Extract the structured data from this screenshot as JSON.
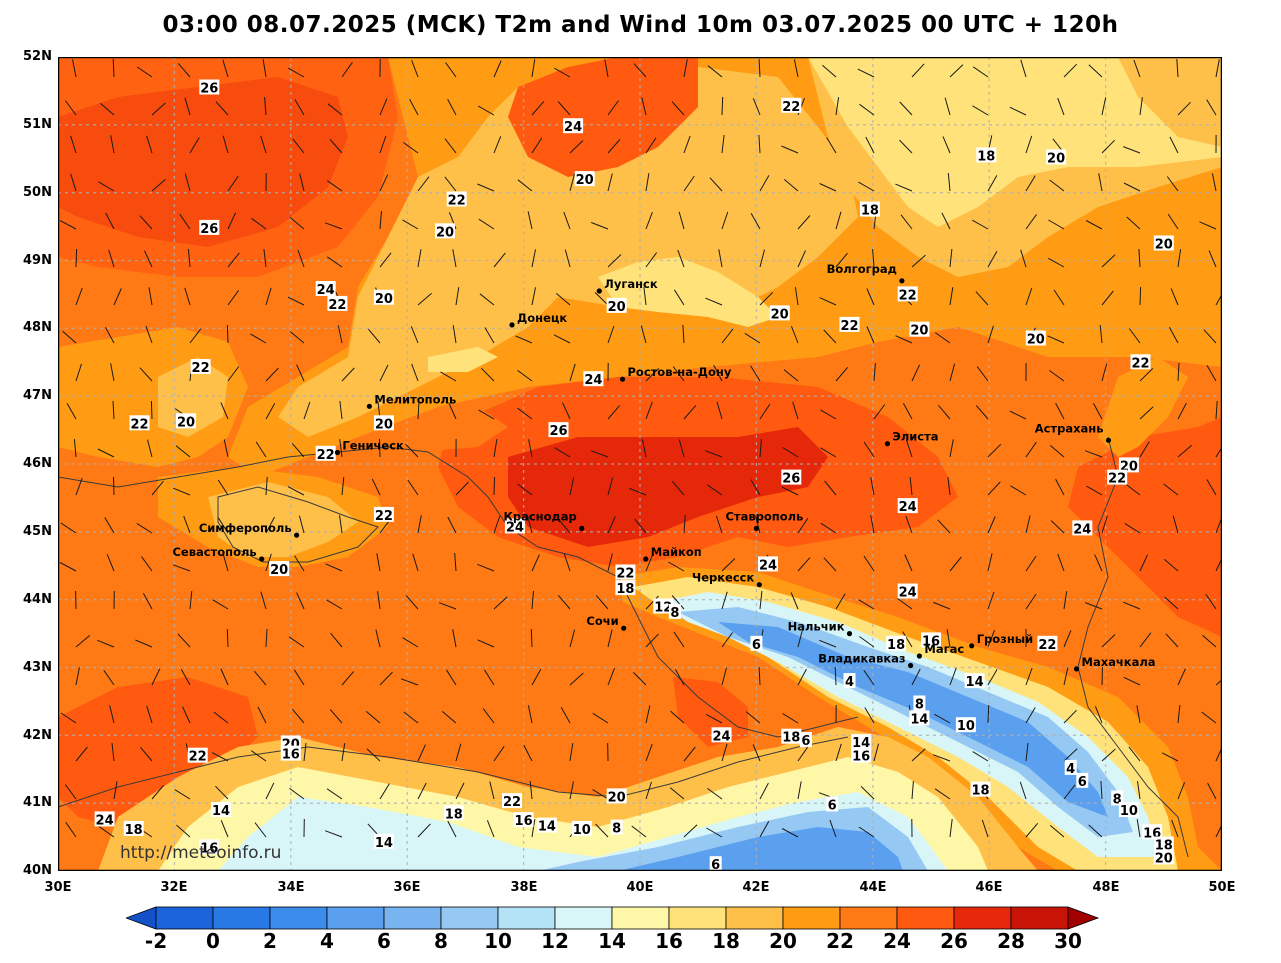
{
  "title": "03:00 08.07.2025 (MCK) T2m and Wind 10m 03.07.2025 00 UTC + 120h",
  "watermark": "http://meteoinfo.ru",
  "lat_labels": [
    "52N",
    "51N",
    "50N",
    "49N",
    "48N",
    "47N",
    "46N",
    "45N",
    "44N",
    "43N",
    "42N",
    "41N",
    "40N"
  ],
  "lon_labels": [
    "30E",
    "32E",
    "34E",
    "36E",
    "38E",
    "40E",
    "42E",
    "44E",
    "46E",
    "48E",
    "50E"
  ],
  "colorbar": {
    "labels": [
      "-2",
      "0",
      "2",
      "4",
      "6",
      "8",
      "10",
      "12",
      "14",
      "16",
      "18",
      "20",
      "22",
      "24",
      "26",
      "28",
      "30"
    ],
    "colors": [
      "#1c64dc",
      "#2878e6",
      "#3c8cec",
      "#5aa0ee",
      "#78b4f0",
      "#96c8f4",
      "#b4e2f6",
      "#d8f6f8",
      "#fff7a8",
      "#ffe37a",
      "#ffc04a",
      "#ff9c14",
      "#ff7a14",
      "#ff5a10",
      "#e6280a",
      "#c81406"
    ],
    "under_color": "#1450c8",
    "over_color": "#a00000"
  },
  "cities": [
    {
      "name": "Луганск",
      "lon": 39.3,
      "lat": 48.55
    },
    {
      "name": "Донецк",
      "lon": 37.8,
      "lat": 48.05
    },
    {
      "name": "Волгоград",
      "lon": 44.5,
      "lat": 48.7
    },
    {
      "name": "Ростов-на-Дону",
      "lon": 39.7,
      "lat": 47.25
    },
    {
      "name": "Мелитополь",
      "lon": 35.35,
      "lat": 46.85
    },
    {
      "name": "Элиста",
      "lon": 44.25,
      "lat": 46.3
    },
    {
      "name": "Астрахань",
      "lon": 48.05,
      "lat": 46.35
    },
    {
      "name": "Геническ",
      "lon": 34.8,
      "lat": 46.17
    },
    {
      "name": "Краснодар",
      "lon": 39.0,
      "lat": 45.05
    },
    {
      "name": "Ставрополь",
      "lon": 42.0,
      "lat": 45.05
    },
    {
      "name": "Симферополь",
      "lon": 34.1,
      "lat": 44.95
    },
    {
      "name": "Севастополь",
      "lon": 33.5,
      "lat": 44.6
    },
    {
      "name": "Майкоп",
      "lon": 40.1,
      "lat": 44.6
    },
    {
      "name": "Черкесск",
      "lon": 42.05,
      "lat": 44.22
    },
    {
      "name": "Сочи",
      "lon": 39.72,
      "lat": 43.58
    },
    {
      "name": "Нальчик",
      "lon": 43.6,
      "lat": 43.5
    },
    {
      "name": "Магас",
      "lon": 44.8,
      "lat": 43.17
    },
    {
      "name": "Грозный",
      "lon": 45.7,
      "lat": 43.32
    },
    {
      "name": "Владикавказ",
      "lon": 44.65,
      "lat": 43.03
    },
    {
      "name": "Махачкала",
      "lon": 47.5,
      "lat": 42.98
    }
  ],
  "isotherm_labels": [
    {
      "text": "26",
      "lon": 32.6,
      "lat": 51.55
    },
    {
      "text": "26",
      "lon": 32.6,
      "lat": 49.48
    },
    {
      "text": "24",
      "lon": 38.85,
      "lat": 50.98
    },
    {
      "text": "22",
      "lon": 42.6,
      "lat": 51.28
    },
    {
      "text": "20",
      "lon": 39.05,
      "lat": 50.2
    },
    {
      "text": "22",
      "lon": 36.85,
      "lat": 49.9
    },
    {
      "text": "20",
      "lon": 36.65,
      "lat": 49.43
    },
    {
      "text": "18",
      "lon": 43.95,
      "lat": 49.75
    },
    {
      "text": "18",
      "lon": 45.95,
      "lat": 50.55
    },
    {
      "text": "20",
      "lon": 47.15,
      "lat": 50.52
    },
    {
      "text": "20",
      "lon": 49.0,
      "lat": 49.25
    },
    {
      "text": "24",
      "lon": 34.6,
      "lat": 48.58
    },
    {
      "text": "22",
      "lon": 34.8,
      "lat": 48.36
    },
    {
      "text": "20",
      "lon": 35.6,
      "lat": 48.45
    },
    {
      "text": "20",
      "lon": 39.6,
      "lat": 48.33
    },
    {
      "text": "20",
      "lon": 42.4,
      "lat": 48.22
    },
    {
      "text": "22",
      "lon": 43.6,
      "lat": 48.05
    },
    {
      "text": "22",
      "lon": 44.6,
      "lat": 48.5
    },
    {
      "text": "20",
      "lon": 44.8,
      "lat": 47.98
    },
    {
      "text": "20",
      "lon": 46.8,
      "lat": 47.85
    },
    {
      "text": "22",
      "lon": 48.6,
      "lat": 47.5
    },
    {
      "text": "22",
      "lon": 32.45,
      "lat": 47.43
    },
    {
      "text": "24",
      "lon": 39.2,
      "lat": 47.25
    },
    {
      "text": "22",
      "lon": 31.4,
      "lat": 46.6
    },
    {
      "text": "20",
      "lon": 32.2,
      "lat": 46.63
    },
    {
      "text": "20",
      "lon": 35.6,
      "lat": 46.6
    },
    {
      "text": "26",
      "lon": 38.6,
      "lat": 46.5
    },
    {
      "text": "22",
      "lon": 34.6,
      "lat": 46.15
    },
    {
      "text": "26",
      "lon": 42.6,
      "lat": 45.8
    },
    {
      "text": "20",
      "lon": 48.4,
      "lat": 45.98
    },
    {
      "text": "22",
      "lon": 48.2,
      "lat": 45.8
    },
    {
      "text": "24",
      "lon": 44.6,
      "lat": 45.38
    },
    {
      "text": "24",
      "lon": 47.6,
      "lat": 45.05
    },
    {
      "text": "22",
      "lon": 35.6,
      "lat": 45.25
    },
    {
      "text": "24",
      "lon": 37.85,
      "lat": 45.08
    },
    {
      "text": "24",
      "lon": 42.2,
      "lat": 44.52
    },
    {
      "text": "24",
      "lon": 44.6,
      "lat": 44.12
    },
    {
      "text": "22",
      "lon": 39.75,
      "lat": 44.4
    },
    {
      "text": "18",
      "lon": 39.75,
      "lat": 44.17
    },
    {
      "text": "12",
      "lon": 40.4,
      "lat": 43.9
    },
    {
      "text": "8",
      "lon": 40.6,
      "lat": 43.82
    },
    {
      "text": "20",
      "lon": 33.8,
      "lat": 44.45
    },
    {
      "text": "6",
      "lon": 42.0,
      "lat": 43.35
    },
    {
      "text": "18",
      "lon": 44.4,
      "lat": 43.35
    },
    {
      "text": "16",
      "lon": 45.0,
      "lat": 43.4
    },
    {
      "text": "22",
      "lon": 47.0,
      "lat": 43.35
    },
    {
      "text": "4",
      "lon": 43.6,
      "lat": 42.8
    },
    {
      "text": "14",
      "lon": 45.75,
      "lat": 42.8
    },
    {
      "text": "8",
      "lon": 44.8,
      "lat": 42.47
    },
    {
      "text": "14",
      "lon": 44.8,
      "lat": 42.25
    },
    {
      "text": "10",
      "lon": 45.6,
      "lat": 42.15
    },
    {
      "text": "24",
      "lon": 41.4,
      "lat": 42.0
    },
    {
      "text": "18",
      "lon": 42.6,
      "lat": 41.98
    },
    {
      "text": "6",
      "lon": 42.85,
      "lat": 41.93
    },
    {
      "text": "14",
      "lon": 43.8,
      "lat": 41.9
    },
    {
      "text": "16",
      "lon": 43.8,
      "lat": 41.7
    },
    {
      "text": "4",
      "lon": 47.4,
      "lat": 41.52
    },
    {
      "text": "6",
      "lon": 47.6,
      "lat": 41.33
    },
    {
      "text": "18",
      "lon": 45.85,
      "lat": 41.2
    },
    {
      "text": "8",
      "lon": 48.2,
      "lat": 41.07
    },
    {
      "text": "10",
      "lon": 48.4,
      "lat": 40.9
    },
    {
      "text": "20",
      "lon": 34.0,
      "lat": 41.88
    },
    {
      "text": "16",
      "lon": 34.0,
      "lat": 41.73
    },
    {
      "text": "22",
      "lon": 32.4,
      "lat": 41.7
    },
    {
      "text": "14",
      "lon": 32.8,
      "lat": 40.9
    },
    {
      "text": "24",
      "lon": 30.8,
      "lat": 40.76
    },
    {
      "text": "18",
      "lon": 31.3,
      "lat": 40.62
    },
    {
      "text": "16",
      "lon": 32.6,
      "lat": 40.35
    },
    {
      "text": "14",
      "lon": 35.6,
      "lat": 40.43
    },
    {
      "text": "18",
      "lon": 36.8,
      "lat": 40.85
    },
    {
      "text": "22",
      "lon": 37.8,
      "lat": 41.03
    },
    {
      "text": "20",
      "lon": 39.6,
      "lat": 41.1
    },
    {
      "text": "6",
      "lon": 43.3,
      "lat": 40.98
    },
    {
      "text": "16",
      "lon": 38.0,
      "lat": 40.75
    },
    {
      "text": "14",
      "lon": 38.4,
      "lat": 40.67
    },
    {
      "text": "10",
      "lon": 39.0,
      "lat": 40.62
    },
    {
      "text": "8",
      "lon": 39.6,
      "lat": 40.64
    },
    {
      "text": "6",
      "lon": 41.3,
      "lat": 40.1
    },
    {
      "text": "16",
      "lon": 48.8,
      "lat": 40.57
    },
    {
      "text": "18",
      "lon": 49.0,
      "lat": 40.39
    },
    {
      "text": "20",
      "lon": 49.0,
      "lat": 40.2
    }
  ]
}
